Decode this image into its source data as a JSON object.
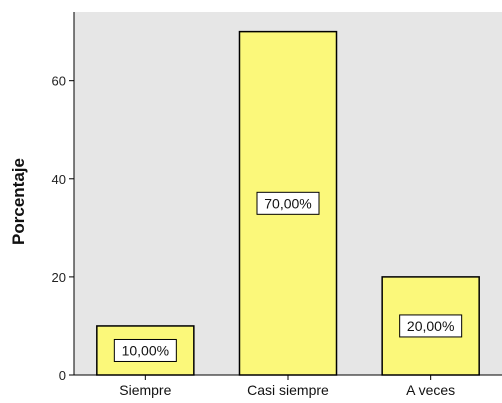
{
  "chart_data": {
    "type": "bar",
    "categories": [
      "Siempre",
      "Casi siempre",
      "A veces"
    ],
    "values": [
      10,
      70,
      20
    ],
    "data_labels": [
      "10,00%",
      "70,00%",
      "20,00%"
    ],
    "title": "",
    "xlabel": "",
    "ylabel": "Porcentaje",
    "ylim": [
      0,
      74
    ],
    "yticks": [
      0,
      20,
      40,
      60
    ],
    "grid": false,
    "colors": {
      "bar_fill": "#fbf87a",
      "bar_stroke": "#000000",
      "plot_background": "#e6e6e6",
      "data_label_background": "#ffffff"
    }
  }
}
